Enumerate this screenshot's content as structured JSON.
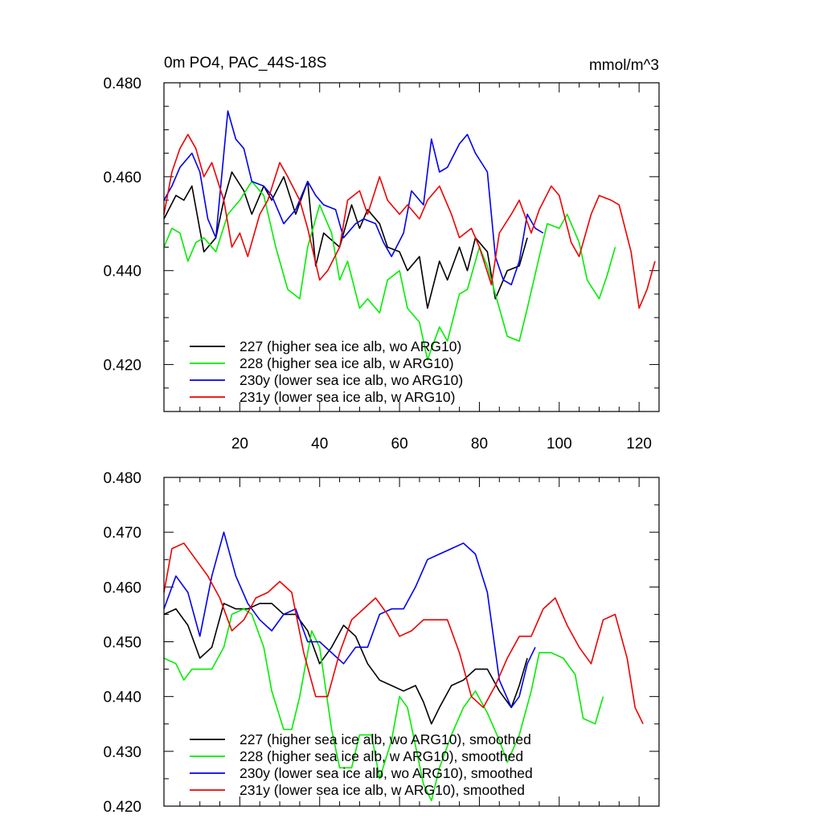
{
  "chart_data": [
    {
      "type": "line",
      "title": "0m PO4, PAC_44S-18S",
      "units": "mmol/m^3",
      "xlim": [
        1,
        125
      ],
      "ylim": [
        0.41,
        0.48
      ],
      "xticks": [
        20,
        40,
        60,
        80,
        100,
        120
      ],
      "xtick_labels": [
        "20",
        "40",
        "60",
        "80",
        "100",
        "120"
      ],
      "yticks": [
        0.42,
        0.44,
        0.46,
        0.48
      ],
      "ytick_labels": [
        "0.420",
        "0.440",
        "0.460",
        "0.480"
      ],
      "show_x_labels": true,
      "legend_position": "bottom-left",
      "series": [
        {
          "name": "227 (higher sea ice alb, wo ARG10)",
          "color": "#000000",
          "x": [
            1,
            4,
            6,
            8,
            11,
            14,
            16,
            18,
            21,
            23,
            26,
            28,
            31,
            34,
            37,
            39,
            41,
            45,
            48,
            50,
            52,
            55,
            57,
            60,
            62,
            65,
            67,
            70,
            72,
            75,
            77,
            79,
            82,
            84,
            87,
            90,
            92
          ],
          "y": [
            0.451,
            0.456,
            0.455,
            0.458,
            0.444,
            0.447,
            0.455,
            0.461,
            0.457,
            0.452,
            0.458,
            0.455,
            0.46,
            0.452,
            0.459,
            0.441,
            0.448,
            0.445,
            0.454,
            0.449,
            0.453,
            0.45,
            0.445,
            0.444,
            0.44,
            0.443,
            0.432,
            0.442,
            0.438,
            0.445,
            0.44,
            0.447,
            0.444,
            0.434,
            0.44,
            0.441,
            0.447
          ]
        },
        {
          "name": "228 (higher sea ice alb, w ARG10)",
          "color": "#00ee00",
          "x": [
            1,
            3,
            5,
            7,
            9,
            11,
            14,
            17,
            20,
            23,
            26,
            29,
            32,
            35,
            37,
            40,
            43,
            45,
            47,
            50,
            52,
            55,
            57,
            60,
            62,
            65,
            67,
            70,
            72,
            75,
            77,
            80,
            82,
            85,
            87,
            90,
            92,
            95,
            97,
            100,
            102,
            105,
            107,
            110,
            112,
            114
          ],
          "y": [
            0.445,
            0.449,
            0.448,
            0.442,
            0.446,
            0.447,
            0.444,
            0.452,
            0.455,
            0.459,
            0.456,
            0.445,
            0.436,
            0.434,
            0.445,
            0.454,
            0.448,
            0.438,
            0.442,
            0.432,
            0.434,
            0.431,
            0.438,
            0.44,
            0.432,
            0.429,
            0.421,
            0.428,
            0.425,
            0.435,
            0.436,
            0.445,
            0.441,
            0.432,
            0.426,
            0.425,
            0.432,
            0.443,
            0.45,
            0.449,
            0.452,
            0.446,
            0.438,
            0.434,
            0.439,
            0.445
          ]
        },
        {
          "name": "230y (lower sea ice alb, wo ARG10)",
          "color": "#0000ee",
          "x": [
            1,
            3,
            5,
            8,
            10,
            12,
            14,
            17,
            19,
            21,
            23,
            26,
            28,
            31,
            34,
            37,
            39,
            41,
            44,
            46,
            49,
            51,
            54,
            56,
            58,
            61,
            63,
            66,
            68,
            70,
            72,
            75,
            77,
            79,
            82,
            84,
            86,
            88,
            90,
            92,
            94,
            96
          ],
          "y": [
            0.455,
            0.458,
            0.462,
            0.465,
            0.461,
            0.451,
            0.447,
            0.474,
            0.468,
            0.466,
            0.459,
            0.458,
            0.456,
            0.45,
            0.453,
            0.459,
            0.456,
            0.454,
            0.453,
            0.447,
            0.45,
            0.451,
            0.45,
            0.446,
            0.443,
            0.448,
            0.457,
            0.454,
            0.468,
            0.461,
            0.462,
            0.467,
            0.469,
            0.465,
            0.461,
            0.443,
            0.438,
            0.437,
            0.442,
            0.452,
            0.449,
            0.448
          ]
        },
        {
          "name": "231y (lower sea ice alb, w ARG10)",
          "color": "#ee0000",
          "x": [
            1,
            3,
            5,
            7,
            9,
            11,
            13,
            16,
            18,
            20,
            22,
            25,
            27,
            30,
            32,
            35,
            37,
            40,
            42,
            45,
            47,
            50,
            52,
            55,
            57,
            60,
            62,
            65,
            67,
            70,
            73,
            75,
            78,
            80,
            83,
            85,
            88,
            90,
            93,
            95,
            98,
            100,
            103,
            105,
            108,
            110,
            113,
            115,
            118,
            120,
            122,
            124
          ],
          "y": [
            0.452,
            0.461,
            0.466,
            0.469,
            0.466,
            0.46,
            0.463,
            0.455,
            0.445,
            0.448,
            0.443,
            0.452,
            0.455,
            0.463,
            0.46,
            0.455,
            0.449,
            0.438,
            0.44,
            0.445,
            0.455,
            0.457,
            0.452,
            0.46,
            0.455,
            0.452,
            0.454,
            0.451,
            0.455,
            0.458,
            0.452,
            0.447,
            0.449,
            0.445,
            0.437,
            0.448,
            0.452,
            0.455,
            0.448,
            0.453,
            0.458,
            0.456,
            0.446,
            0.443,
            0.452,
            0.456,
            0.455,
            0.454,
            0.444,
            0.432,
            0.436,
            0.442
          ]
        }
      ]
    },
    {
      "type": "line",
      "xlim": [
        1,
        125
      ],
      "ylim": [
        0.42,
        0.48
      ],
      "xticks": [
        20,
        40,
        60,
        80,
        100,
        120
      ],
      "xtick_labels": [],
      "yticks": [
        0.42,
        0.43,
        0.44,
        0.45,
        0.46,
        0.47,
        0.48
      ],
      "ytick_labels": [
        "0.420",
        "0.430",
        "0.440",
        "0.450",
        "0.460",
        "0.470",
        "0.480"
      ],
      "show_x_labels": false,
      "legend_position": "bottom-left",
      "series": [
        {
          "name": "227 (higher sea ice alb, wo ARG10), smoothed",
          "color": "#000000",
          "x": [
            1,
            4,
            7,
            10,
            13,
            16,
            19,
            22,
            25,
            28,
            31,
            34,
            37,
            40,
            43,
            46,
            49,
            52,
            55,
            58,
            61,
            64,
            66,
            68,
            70,
            73,
            76,
            79,
            82,
            85,
            88,
            90,
            92
          ],
          "y": [
            0.455,
            0.456,
            0.453,
            0.447,
            0.449,
            0.457,
            0.456,
            0.456,
            0.457,
            0.457,
            0.455,
            0.455,
            0.452,
            0.446,
            0.449,
            0.453,
            0.451,
            0.446,
            0.443,
            0.442,
            0.441,
            0.442,
            0.439,
            0.435,
            0.438,
            0.442,
            0.443,
            0.445,
            0.445,
            0.441,
            0.438,
            0.442,
            0.447
          ]
        },
        {
          "name": "228 (higher sea ice alb, w ARG10), smoothed",
          "color": "#00ee00",
          "x": [
            1,
            4,
            6,
            8,
            10,
            13,
            16,
            18,
            21,
            23,
            26,
            28,
            31,
            33,
            35,
            38,
            40,
            43,
            45,
            48,
            50,
            53,
            55,
            58,
            60,
            62,
            64,
            66,
            68,
            70,
            73,
            76,
            79,
            82,
            85,
            87,
            90,
            93,
            95,
            98,
            101,
            104,
            106,
            109,
            111
          ],
          "y": [
            0.447,
            0.446,
            0.443,
            0.445,
            0.445,
            0.445,
            0.449,
            0.455,
            0.456,
            0.455,
            0.449,
            0.441,
            0.434,
            0.434,
            0.44,
            0.452,
            0.449,
            0.434,
            0.427,
            0.427,
            0.433,
            0.433,
            0.425,
            0.432,
            0.44,
            0.438,
            0.431,
            0.424,
            0.421,
            0.427,
            0.433,
            0.438,
            0.441,
            0.437,
            0.432,
            0.428,
            0.433,
            0.441,
            0.448,
            0.448,
            0.447,
            0.444,
            0.436,
            0.435,
            0.44
          ]
        },
        {
          "name": "230y (lower sea ice alb, wo ARG10), smoothed",
          "color": "#0000ee",
          "x": [
            1,
            4,
            7,
            10,
            13,
            16,
            19,
            22,
            25,
            28,
            31,
            34,
            37,
            40,
            43,
            46,
            49,
            52,
            55,
            58,
            61,
            64,
            67,
            70,
            73,
            76,
            79,
            82,
            85,
            88,
            90,
            92,
            94
          ],
          "y": [
            0.456,
            0.462,
            0.459,
            0.451,
            0.462,
            0.47,
            0.462,
            0.457,
            0.454,
            0.452,
            0.455,
            0.456,
            0.45,
            0.45,
            0.448,
            0.446,
            0.449,
            0.449,
            0.455,
            0.456,
            0.456,
            0.46,
            0.465,
            0.466,
            0.467,
            0.468,
            0.466,
            0.459,
            0.443,
            0.438,
            0.44,
            0.446,
            0.449
          ]
        },
        {
          "name": "231y (lower sea ice alb, w ARG10), smoothed",
          "color": "#ee0000",
          "x": [
            1,
            3,
            6,
            9,
            12,
            15,
            18,
            21,
            24,
            27,
            30,
            33,
            36,
            39,
            42,
            45,
            48,
            51,
            54,
            57,
            60,
            63,
            66,
            69,
            72,
            75,
            78,
            81,
            84,
            87,
            90,
            93,
            96,
            99,
            102,
            105,
            108,
            111,
            114,
            117,
            119,
            121
          ],
          "y": [
            0.459,
            0.467,
            0.468,
            0.465,
            0.462,
            0.458,
            0.452,
            0.454,
            0.458,
            0.459,
            0.461,
            0.459,
            0.448,
            0.44,
            0.44,
            0.448,
            0.454,
            0.456,
            0.458,
            0.455,
            0.451,
            0.452,
            0.454,
            0.454,
            0.454,
            0.448,
            0.44,
            0.438,
            0.442,
            0.447,
            0.451,
            0.451,
            0.456,
            0.458,
            0.453,
            0.449,
            0.446,
            0.454,
            0.455,
            0.447,
            0.438,
            0.435
          ]
        }
      ]
    }
  ]
}
